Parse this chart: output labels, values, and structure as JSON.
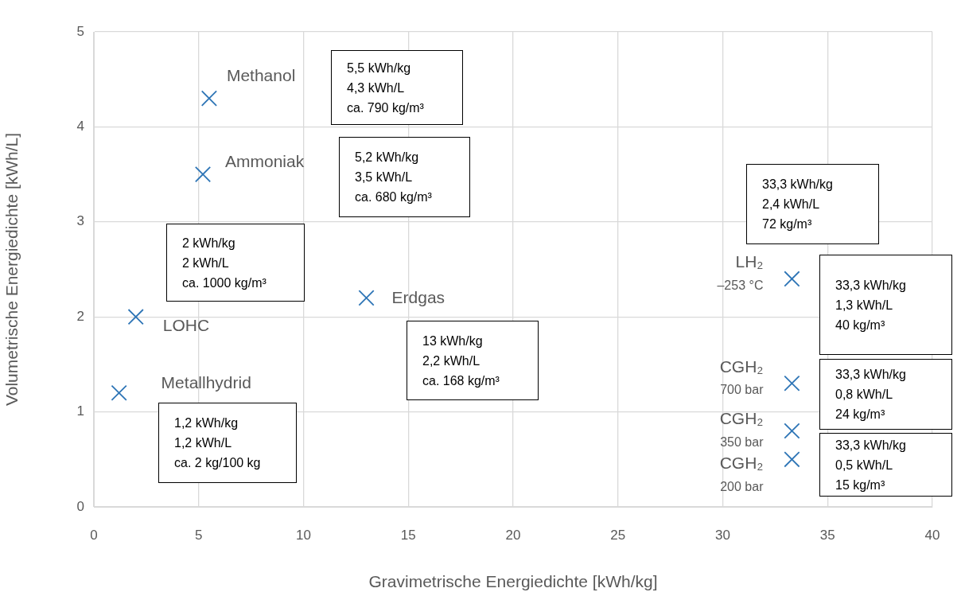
{
  "chart_data": {
    "type": "scatter",
    "xlabel": "Gravimetrische Energiedichte [kWh/kg]",
    "ylabel": "Volumetrische Energiedichte [kWh/L]",
    "x": [
      5.5,
      5.2,
      2,
      1.2,
      13,
      33.3,
      33.3,
      33.3,
      33.3
    ],
    "values": [
      4.3,
      3.5,
      2,
      1.2,
      2.2,
      2.4,
      1.3,
      0.8,
      0.5
    ],
    "color": "#2e75b6",
    "marker": "cross",
    "xlim": [
      0,
      40
    ],
    "xticks": [
      0,
      5,
      10,
      15,
      20,
      25,
      30,
      35,
      40
    ],
    "ylim": [
      0,
      5
    ],
    "yticks": [
      0,
      1,
      2,
      3,
      4,
      5
    ],
    "grid": true,
    "legend": false,
    "annotations": [
      {
        "text": "Methanol",
        "x": 5.5,
        "y": 4.3
      },
      {
        "text": "Ammoniak",
        "x": 5.2,
        "y": 3.5
      },
      {
        "text": "LOHC",
        "x": 2,
        "y": 2
      },
      {
        "text": "Metallhydrid",
        "x": 1.2,
        "y": 1.2
      },
      {
        "text": "Erdgas",
        "x": 13,
        "y": 2.2
      },
      {
        "text": "LH₂\n–253 °C",
        "x": 33.3,
        "y": 2.4
      },
      {
        "text": "CGH₂\n700 bar",
        "x": 33.3,
        "y": 1.3
      },
      {
        "text": "CGH₂\n350 bar",
        "x": 33.3,
        "y": 0.8
      },
      {
        "text": "CGH₂\n200 bar",
        "x": 33.3,
        "y": 0.5
      },
      "5,5 kWh/kg\n4,3 kWh/L\nca. 790 kg/m³",
      "5,2 kWh/kg\n3,5 kWh/L\nca. 680 kg/m³",
      "2 kWh/kg\n2 kWh/L\nca. 1000 kg/m³",
      "13 kWh/kg\n2,2 kWh/L\nca. 168 kg/m³",
      "1,2 kWh/kg\n1,2 kWh/L\nca. 2 kg/100 kg",
      "33,3 kWh/kg\n2,4 kWh/L\n72 kg/m³",
      "33,3 kWh/kg\n1,3 kWh/L\n40 kg/m³",
      "33,3 kWh/kg\n0,8 kWh/L\n24 kg/m³",
      "33,3 kWh/kg\n0,5 kWh/L\n15 kg/m³"
    ]
  }
}
